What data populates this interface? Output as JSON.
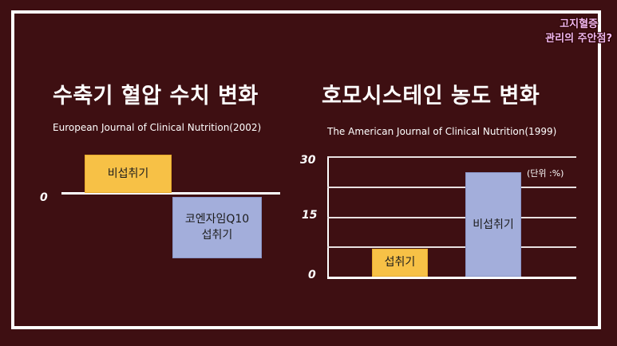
{
  "corner_caption": {
    "line1": "고지혈증",
    "line2": "관리의 주안점?"
  },
  "chart_data": [
    {
      "type": "bar",
      "title": "수축기 혈압 수치 변화",
      "subtitle": "European Journal of Clinical Nutrition(2002)",
      "xlabel": "",
      "ylabel": "",
      "y_tick_labels": [
        "0"
      ],
      "categories": [
        "비섭취기",
        "코엔자임Q10\n섭취기"
      ],
      "values": [
        1,
        -1.6
      ],
      "bar_colors": [
        "#f7c146",
        "#a3aedb"
      ],
      "grid": false
    },
    {
      "type": "bar",
      "title": "호모시스테인 농도 변화",
      "subtitle": "The American Journal of Clinical Nutrition(1999)",
      "xlabel": "",
      "ylabel": "",
      "unit_label": "(단위 :%)",
      "y_tick_labels": [
        "30",
        "15",
        "0"
      ],
      "ylim": [
        0,
        30
      ],
      "categories": [
        "섭취기",
        "비섭취기"
      ],
      "values": [
        7,
        26
      ],
      "bar_colors": [
        "#f7c146",
        "#a3aedb"
      ],
      "grid": true,
      "gridlines": [
        7.5,
        15,
        22.5,
        30
      ]
    }
  ]
}
